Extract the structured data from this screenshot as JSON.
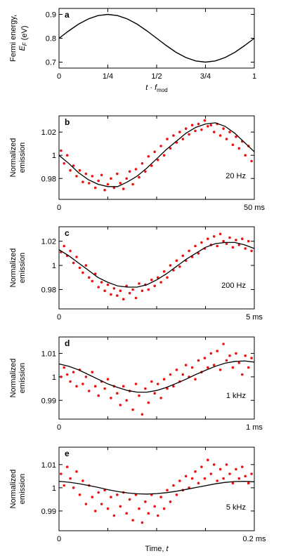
{
  "chart_data": [
    {
      "type": "line",
      "panel_label": "a",
      "ylabel_lines": [
        "Fermi energy,",
        "E_F (eV)"
      ],
      "xlabel": "t · f_mod",
      "xticks": [
        "0",
        "1/4",
        "1/2",
        "3/4",
        "1"
      ],
      "yticks": [
        "0.7",
        "0.8",
        "0.9"
      ],
      "xlim": [
        0,
        1
      ],
      "ylim": [
        0.675,
        0.925
      ],
      "series": [
        {
          "x": [
            0,
            0.05,
            0.1,
            0.15,
            0.2,
            0.25,
            0.3,
            0.35,
            0.4,
            0.45,
            0.5,
            0.55,
            0.6,
            0.65,
            0.7,
            0.75,
            0.8,
            0.85,
            0.9,
            0.95,
            1.0
          ],
          "y": [
            0.8,
            0.831,
            0.859,
            0.881,
            0.895,
            0.9,
            0.895,
            0.881,
            0.859,
            0.831,
            0.8,
            0.769,
            0.741,
            0.719,
            0.705,
            0.7,
            0.705,
            0.719,
            0.741,
            0.769,
            0.8
          ]
        }
      ]
    },
    {
      "type": "scatter",
      "panel_label": "b",
      "ylabel_lines": [
        "Normalized",
        "emission"
      ],
      "freq_label": "20 Hz",
      "xtick_left": "0",
      "xtick_right": "50 ms",
      "yticks": [
        "0.98",
        "1",
        "1.02"
      ],
      "xlim": [
        0,
        50
      ],
      "ylim": [
        0.962,
        1.034
      ],
      "fit": {
        "x": [
          0,
          2.5,
          5,
          7.5,
          10,
          12.5,
          15,
          17.5,
          20,
          22.5,
          25,
          27.5,
          30,
          32.5,
          35,
          37.5,
          40,
          42.5,
          45,
          47.5,
          50
        ],
        "y": [
          1.0,
          0.993,
          0.985,
          0.979,
          0.975,
          0.973,
          0.973,
          0.977,
          0.982,
          0.989,
          0.997,
          1.005,
          1.012,
          1.019,
          1.024,
          1.027,
          1.028,
          1.025,
          1.019,
          1.011,
          1.003
        ]
      },
      "points": {
        "x": [
          0.5,
          1.3,
          2.1,
          2.9,
          3.7,
          4.5,
          5.3,
          6.1,
          6.9,
          7.7,
          8.5,
          9.3,
          10.1,
          10.9,
          11.7,
          12.5,
          13.3,
          14.1,
          14.9,
          15.7,
          16.5,
          17.3,
          18.1,
          18.9,
          19.7,
          20.5,
          21.3,
          22.1,
          22.9,
          23.7,
          24.5,
          25.3,
          26.1,
          26.9,
          27.7,
          28.5,
          29.3,
          30.1,
          30.9,
          31.7,
          32.5,
          33.3,
          34.1,
          34.9,
          35.7,
          36.5,
          37.3,
          38.1,
          38.9,
          39.7,
          40.5,
          41.3,
          42.1,
          42.9,
          43.7,
          44.5,
          45.3,
          46.1,
          46.9,
          47.7,
          48.5,
          49.3
        ],
        "y": [
          1.004,
          0.993,
          1.0,
          0.987,
          0.991,
          0.982,
          0.987,
          0.977,
          0.984,
          0.976,
          0.982,
          0.972,
          0.978,
          0.983,
          0.97,
          0.975,
          0.98,
          0.972,
          0.984,
          0.976,
          0.971,
          0.98,
          0.986,
          0.975,
          0.988,
          0.981,
          0.993,
          0.986,
          0.999,
          0.991,
          1.003,
          0.996,
          1.008,
          1.0,
          1.014,
          1.006,
          1.017,
          1.011,
          1.02,
          1.014,
          1.023,
          1.018,
          1.026,
          1.021,
          1.027,
          1.022,
          1.03,
          1.025,
          1.026,
          1.02,
          1.027,
          1.017,
          1.023,
          1.014,
          1.02,
          1.009,
          1.016,
          1.006,
          1.012,
          1.0,
          1.008,
          0.995
        ]
      }
    },
    {
      "type": "scatter",
      "panel_label": "c",
      "ylabel_lines": [
        "Normalized",
        "emission"
      ],
      "freq_label": "200 Hz",
      "xtick_left": "0",
      "xtick_right": "5 ms",
      "yticks": [
        "0.98",
        "1",
        "1.02"
      ],
      "xlim": [
        0,
        5
      ],
      "ylim": [
        0.964,
        1.032
      ],
      "fit": {
        "x": [
          0,
          0.25,
          0.5,
          0.75,
          1.0,
          1.25,
          1.5,
          1.75,
          2.0,
          2.25,
          2.5,
          2.75,
          3.0,
          3.25,
          3.5,
          3.75,
          4.0,
          4.25,
          4.5,
          4.75,
          5.0
        ],
        "y": [
          1.013,
          1.008,
          1.002,
          0.996,
          0.99,
          0.986,
          0.983,
          0.982,
          0.982,
          0.984,
          0.988,
          0.993,
          0.999,
          1.005,
          1.01,
          1.015,
          1.018,
          1.019,
          1.019,
          1.017,
          1.014
        ]
      },
      "points": {
        "x": [
          0.05,
          0.13,
          0.21,
          0.29,
          0.37,
          0.45,
          0.53,
          0.61,
          0.69,
          0.77,
          0.85,
          0.93,
          1.01,
          1.09,
          1.17,
          1.25,
          1.33,
          1.41,
          1.49,
          1.57,
          1.65,
          1.73,
          1.81,
          1.89,
          1.97,
          2.05,
          2.13,
          2.21,
          2.29,
          2.37,
          2.45,
          2.53,
          2.61,
          2.69,
          2.77,
          2.85,
          2.93,
          3.01,
          3.09,
          3.17,
          3.25,
          3.33,
          3.41,
          3.49,
          3.57,
          3.65,
          3.73,
          3.81,
          3.89,
          3.97,
          4.05,
          4.13,
          4.21,
          4.29,
          4.37,
          4.45,
          4.53,
          4.61,
          4.69,
          4.77,
          4.85,
          4.93
        ],
        "y": [
          1.011,
          1.016,
          1.008,
          1.012,
          1.002,
          1.007,
          0.998,
          0.994,
          1.0,
          0.99,
          0.987,
          0.993,
          0.982,
          0.986,
          0.979,
          0.984,
          0.976,
          0.981,
          0.975,
          0.979,
          0.972,
          0.983,
          0.977,
          0.98,
          0.973,
          0.985,
          0.979,
          0.984,
          0.98,
          0.988,
          0.983,
          0.99,
          0.986,
          0.995,
          0.99,
          1.0,
          0.996,
          1.004,
          0.999,
          1.008,
          1.004,
          1.012,
          1.007,
          1.016,
          1.01,
          1.019,
          1.014,
          1.022,
          1.017,
          1.024,
          1.016,
          1.026,
          1.02,
          1.018,
          1.023,
          1.015,
          1.021,
          1.017,
          1.022,
          1.014,
          1.02,
          1.012
        ]
      }
    },
    {
      "type": "scatter",
      "panel_label": "d",
      "ylabel_lines": [
        "Normalized",
        "emission"
      ],
      "freq_label": "1 kHz",
      "xtick_left": "0",
      "xtick_right": "1 ms",
      "yticks": [
        "0.99",
        "1",
        "1.01"
      ],
      "xlim": [
        0,
        1
      ],
      "ylim": [
        0.982,
        1.017
      ],
      "fit": {
        "x": [
          0,
          0.05,
          0.1,
          0.15,
          0.2,
          0.25,
          0.3,
          0.35,
          0.4,
          0.45,
          0.5,
          0.55,
          0.6,
          0.65,
          0.7,
          0.75,
          0.8,
          0.85,
          0.9,
          0.95,
          1.0
        ],
        "y": [
          1.0055,
          1.0045,
          1.003,
          1.001,
          0.999,
          0.997,
          0.9955,
          0.9942,
          0.9935,
          0.9935,
          0.9942,
          0.9955,
          0.9972,
          0.999,
          1.001,
          1.0028,
          1.0045,
          1.0058,
          1.0066,
          1.0068,
          1.0063
        ]
      },
      "points": {
        "x": [
          0.01,
          0.026,
          0.042,
          0.058,
          0.074,
          0.09,
          0.106,
          0.122,
          0.138,
          0.154,
          0.17,
          0.186,
          0.202,
          0.218,
          0.234,
          0.25,
          0.266,
          0.282,
          0.298,
          0.314,
          0.33,
          0.346,
          0.362,
          0.378,
          0.394,
          0.41,
          0.426,
          0.442,
          0.458,
          0.474,
          0.49,
          0.506,
          0.522,
          0.538,
          0.554,
          0.57,
          0.586,
          0.602,
          0.618,
          0.634,
          0.65,
          0.666,
          0.682,
          0.698,
          0.714,
          0.73,
          0.746,
          0.762,
          0.778,
          0.794,
          0.81,
          0.826,
          0.842,
          0.858,
          0.874,
          0.89,
          0.906,
          0.922,
          0.938,
          0.954,
          0.97,
          0.986
        ],
        "y": [
          1.0,
          1.004,
          1.001,
          0.998,
          1.002,
          0.996,
          1.003,
          0.997,
          1.0,
          0.994,
          1.002,
          0.996,
          0.992,
          0.998,
          0.995,
          0.999,
          0.991,
          0.996,
          0.993,
          0.988,
          0.996,
          0.99,
          0.994,
          0.986,
          0.997,
          0.992,
          0.984,
          0.995,
          0.989,
          0.998,
          0.993,
          0.997,
          0.991,
          0.999,
          0.995,
          1.001,
          0.996,
          1.003,
          0.998,
          1.001,
          1.005,
          1.0,
          1.004,
          0.999,
          1.007,
          1.002,
          1.008,
          1.004,
          1.01,
          1.005,
          1.011,
          1.003,
          1.014,
          1.007,
          1.009,
          1.004,
          1.01,
          1.006,
          1.001,
          1.009,
          1.004,
          1.008
        ]
      }
    },
    {
      "type": "scatter",
      "panel_label": "e",
      "ylabel_lines": [
        "Normalized",
        "emission"
      ],
      "freq_label": "5 kHz",
      "xtick_left": "0",
      "xtick_right": "0.2 ms",
      "xlabel": "Time, t",
      "yticks": [
        "0.99",
        "1",
        "1.01"
      ],
      "xlim": [
        0,
        0.2
      ],
      "ylim": [
        0.9815,
        1.0175
      ],
      "fit": {
        "x": [
          0,
          0.01,
          0.02,
          0.03,
          0.04,
          0.05,
          0.06,
          0.07,
          0.08,
          0.09,
          0.1,
          0.11,
          0.12,
          0.13,
          0.14,
          0.15,
          0.16,
          0.17,
          0.18,
          0.19,
          0.2
        ],
        "y": [
          1.0028,
          1.0024,
          1.0018,
          1.001,
          1.0002,
          0.9992,
          0.9984,
          0.9978,
          0.9974,
          0.9973,
          0.9975,
          0.9979,
          0.9985,
          0.9993,
          1.0001,
          1.0009,
          1.0017,
          1.0023,
          1.0027,
          1.0028,
          1.0026
        ]
      },
      "points": {
        "x": [
          0.002,
          0.0052,
          0.0084,
          0.0116,
          0.0148,
          0.018,
          0.0212,
          0.0244,
          0.0276,
          0.0308,
          0.034,
          0.0372,
          0.0404,
          0.0436,
          0.0468,
          0.05,
          0.0532,
          0.0564,
          0.0596,
          0.0628,
          0.066,
          0.0692,
          0.0724,
          0.0756,
          0.0788,
          0.082,
          0.0852,
          0.0884,
          0.0916,
          0.0948,
          0.098,
          0.1012,
          0.1044,
          0.1076,
          0.1108,
          0.114,
          0.1172,
          0.1204,
          0.1236,
          0.1268,
          0.13,
          0.1332,
          0.1364,
          0.1396,
          0.1428,
          0.146,
          0.1492,
          0.1524,
          0.1556,
          0.1588,
          0.162,
          0.1652,
          0.1684,
          0.1716,
          0.1748,
          0.178,
          0.1812,
          0.1844,
          0.1876,
          0.1908,
          0.194,
          0.1972
        ],
        "y": [
          1.006,
          1.001,
          1.009,
          1.004,
          1.0,
          1.007,
          0.997,
          1.003,
          0.993,
          1.001,
          0.996,
          0.99,
          0.998,
          0.993,
          0.999,
          0.991,
          0.996,
          0.988,
          0.997,
          0.992,
          0.998,
          0.989,
          0.995,
          0.986,
          0.997,
          0.991,
          0.985,
          0.994,
          0.989,
          0.997,
          0.992,
          0.988,
          0.996,
          0.991,
          0.999,
          0.994,
          1.001,
          0.997,
          1.003,
          0.999,
          1.005,
          1.0,
          1.004,
          1.007,
          1.002,
          1.009,
          1.004,
          1.012,
          1.006,
          1.01,
          1.003,
          1.008,
          1.004,
          1.01,
          1.006,
          1.002,
          1.008,
          1.004,
          1.009,
          1.005,
          1.002,
          1.006
        ]
      }
    }
  ],
  "colors": {
    "points": "#ee1111",
    "fit": "#000000",
    "axis": "#000000"
  }
}
